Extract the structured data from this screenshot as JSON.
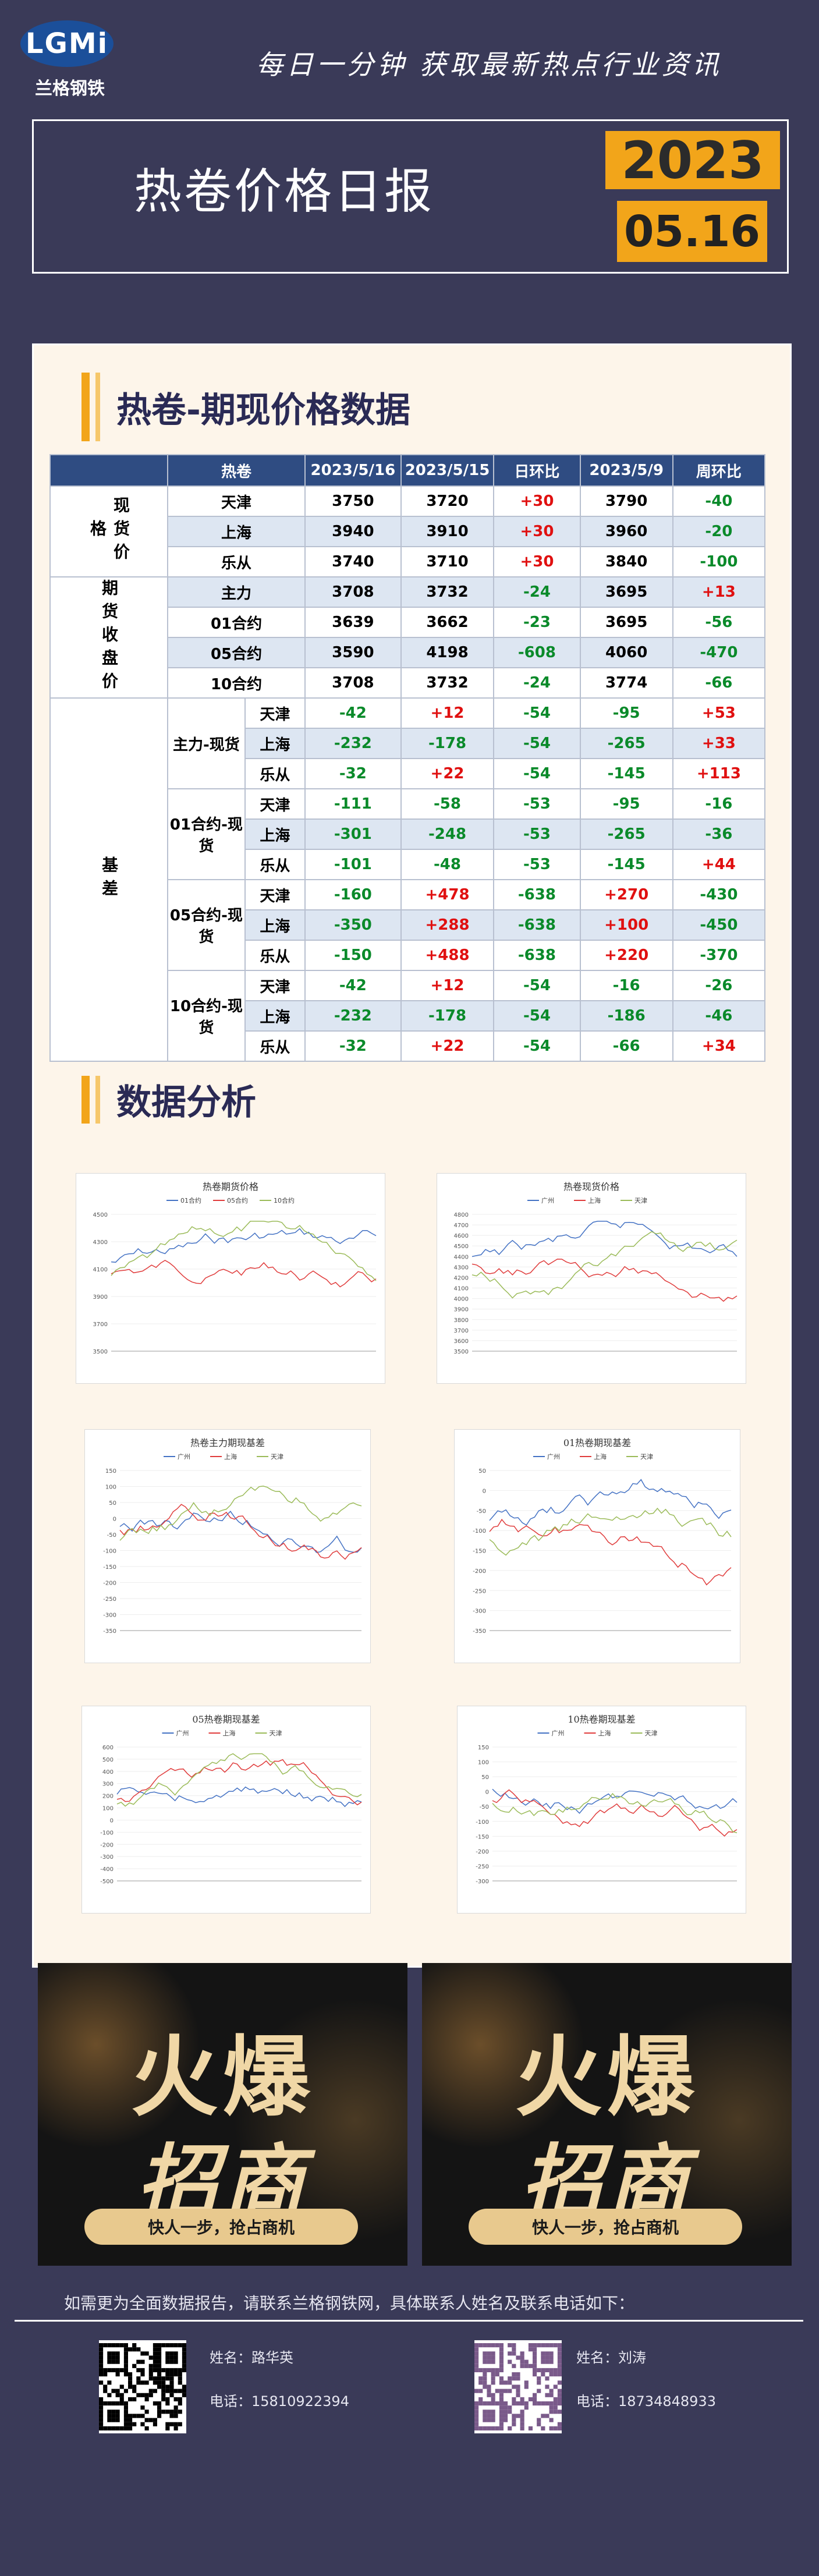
{
  "header": {
    "logo_text": "LGMi",
    "logo_sub": "兰格钢铁",
    "slogan": "每日一分钟  获取最新热点行业资讯",
    "title": "热卷价格日报",
    "year": "2023",
    "date": "05.16"
  },
  "section1": {
    "title": "热卷-期现价格数据"
  },
  "table": {
    "headers": [
      "热卷",
      "2023/5/16",
      "2023/5/15",
      "日环比",
      "2023/5/9",
      "周环比"
    ],
    "groups": {
      "spot": "现货价格",
      "futures": "期货收盘价",
      "basis": "基差"
    },
    "spot_rows": [
      {
        "name": "天津",
        "v1": "3750",
        "v2": "3720",
        "d": "+30",
        "w": "3790",
        "wc": "-40"
      },
      {
        "name": "上海",
        "v1": "3940",
        "v2": "3910",
        "d": "+30",
        "w": "3960",
        "wc": "-20"
      },
      {
        "name": "乐从",
        "v1": "3740",
        "v2": "3710",
        "d": "+30",
        "w": "3840",
        "wc": "-100"
      }
    ],
    "futures_rows": [
      {
        "name": "主力",
        "v1": "3708",
        "v2": "3732",
        "d": "-24",
        "w": "3695",
        "wc": "+13"
      },
      {
        "name": "01合约",
        "v1": "3639",
        "v2": "3662",
        "d": "-23",
        "w": "3695",
        "wc": "-56"
      },
      {
        "name": "05合约",
        "v1": "3590",
        "v2": "4198",
        "d": "-608",
        "w": "4060",
        "wc": "-470"
      },
      {
        "name": "10合约",
        "v1": "3708",
        "v2": "3732",
        "d": "-24",
        "w": "3774",
        "wc": "-66"
      }
    ],
    "basis_groups": [
      {
        "label": "主力-现货",
        "rows": [
          {
            "city": "天津",
            "v1": "-42",
            "v2": "+12",
            "d": "-54",
            "w": "-95",
            "wc": "+53"
          },
          {
            "city": "上海",
            "v1": "-232",
            "v2": "-178",
            "d": "-54",
            "w": "-265",
            "wc": "+33"
          },
          {
            "city": "乐从",
            "v1": "-32",
            "v2": "+22",
            "d": "-54",
            "w": "-145",
            "wc": "+113"
          }
        ]
      },
      {
        "label": "01合约-现货",
        "rows": [
          {
            "city": "天津",
            "v1": "-111",
            "v2": "-58",
            "d": "-53",
            "w": "-95",
            "wc": "-16"
          },
          {
            "city": "上海",
            "v1": "-301",
            "v2": "-248",
            "d": "-53",
            "w": "-265",
            "wc": "-36"
          },
          {
            "city": "乐从",
            "v1": "-101",
            "v2": "-48",
            "d": "-53",
            "w": "-145",
            "wc": "+44"
          }
        ]
      },
      {
        "label": "05合约-现货",
        "rows": [
          {
            "city": "天津",
            "v1": "-160",
            "v2": "+478",
            "d": "-638",
            "w": "+270",
            "wc": "-430"
          },
          {
            "city": "上海",
            "v1": "-350",
            "v2": "+288",
            "d": "-638",
            "w": "+100",
            "wc": "-450"
          },
          {
            "city": "乐从",
            "v1": "-150",
            "v2": "+488",
            "d": "-638",
            "w": "+220",
            "wc": "-370"
          }
        ]
      },
      {
        "label": "10合约-现货",
        "rows": [
          {
            "city": "天津",
            "v1": "-42",
            "v2": "+12",
            "d": "-54",
            "w": "-16",
            "wc": "-26"
          },
          {
            "city": "上海",
            "v1": "-232",
            "v2": "-178",
            "d": "-54",
            "w": "-186",
            "wc": "-46"
          },
          {
            "city": "乐从",
            "v1": "-32",
            "v2": "+22",
            "d": "-54",
            "w": "-66",
            "wc": "+34"
          }
        ]
      }
    ]
  },
  "section2": {
    "title": "数据分析"
  },
  "charts": [
    {
      "title": "热卷期货价格",
      "legend": [
        "01合约",
        "05合约",
        "10合约"
      ],
      "yticks": [
        "4500",
        "4300",
        "4100",
        "3900",
        "3700",
        "3500"
      ],
      "colors": [
        "#4472c4",
        "#e03c3c",
        "#9bbb59"
      ]
    },
    {
      "title": "热卷现货价格",
      "legend": [
        "广州",
        "上海",
        "天津"
      ],
      "yticks": [
        "4800",
        "4700",
        "4600",
        "4500",
        "4400",
        "4300",
        "4200",
        "4100",
        "4000",
        "3900",
        "3800",
        "3700",
        "3600",
        "3500"
      ],
      "colors": [
        "#4472c4",
        "#e03c3c",
        "#9bbb59"
      ]
    },
    {
      "title": "热卷主力期现基差",
      "legend": [
        "广州",
        "上海",
        "天津"
      ],
      "yticks": [
        "150",
        "100",
        "50",
        "0",
        "-50",
        "-100",
        "-150",
        "-200",
        "-250",
        "-300",
        "-350"
      ],
      "colors": [
        "#4472c4",
        "#e03c3c",
        "#9bbb59"
      ]
    },
    {
      "title": "01热卷期现基差",
      "legend": [
        "广州",
        "上海",
        "天津"
      ],
      "yticks": [
        "50",
        "0",
        "-50",
        "-100",
        "-150",
        "-200",
        "-250",
        "-300",
        "-350"
      ],
      "colors": [
        "#4472c4",
        "#e03c3c",
        "#9bbb59"
      ]
    },
    {
      "title": "05热卷期现基差",
      "legend": [
        "广州",
        "上海",
        "天津"
      ],
      "yticks": [
        "600",
        "500",
        "400",
        "300",
        "200",
        "100",
        "0",
        "-100",
        "-200",
        "-300",
        "-400",
        "-500"
      ],
      "colors": [
        "#4472c4",
        "#e03c3c",
        "#9bbb59"
      ]
    },
    {
      "title": "10热卷期现基差",
      "legend": [
        "广州",
        "上海",
        "天津"
      ],
      "yticks": [
        "150",
        "100",
        "50",
        "0",
        "-50",
        "-100",
        "-150",
        "-200",
        "-250",
        "-300"
      ],
      "colors": [
        "#4472c4",
        "#e03c3c",
        "#9bbb59"
      ]
    }
  ],
  "banners": [
    {
      "line1": "火爆",
      "line2": "招商",
      "strip": "快人一步，抢占商机"
    },
    {
      "line1": "火爆",
      "line2": "招商",
      "strip": "快人一步，抢占商机"
    }
  ],
  "contact": {
    "note": "如需更为全面数据报告，请联系兰格钢铁网，具体联系人姓名及联系电话如下：",
    "people": [
      {
        "name_label": "姓名：路华英",
        "phone_label": "电话：15810922394"
      },
      {
        "name_label": "姓名：刘涛",
        "phone_label": "电话：18734848933"
      }
    ]
  },
  "colors": {
    "bg": "#3a3a58",
    "accent": "#f2a51a",
    "table_header": "#2f4c82",
    "up": "#e01010",
    "down": "#0a8a2a"
  }
}
